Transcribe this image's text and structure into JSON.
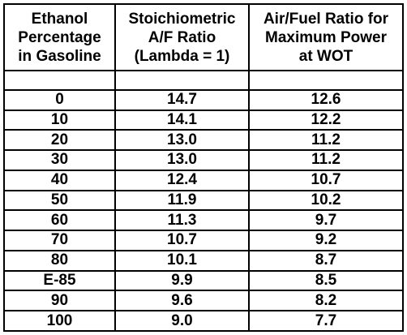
{
  "table": {
    "headers": [
      [
        "Ethanol",
        "Percentage",
        "in Gasoline"
      ],
      [
        "Stoichiometric",
        "A/F Ratio",
        "(Lambda = 1)"
      ],
      [
        "Air/Fuel Ratio for",
        "Maximum Power",
        "at WOT"
      ]
    ],
    "rows": [
      [
        "0",
        "14.7",
        "12.6"
      ],
      [
        "10",
        "14.1",
        "12.2"
      ],
      [
        "20",
        "13.0",
        "11.2"
      ],
      [
        "30",
        "13.0",
        "11.2"
      ],
      [
        "40",
        "12.4",
        "10.7"
      ],
      [
        "50",
        "11.9",
        "10.2"
      ],
      [
        "60",
        "11.3",
        "9.7"
      ],
      [
        "70",
        "10.7",
        "9.2"
      ],
      [
        "80",
        "10.1",
        "8.7"
      ],
      [
        "E-85",
        "9.9",
        "8.5"
      ],
      [
        "90",
        "9.6",
        "8.2"
      ],
      [
        "100",
        "9.0",
        "7.7"
      ]
    ]
  },
  "colors": {
    "border": "#000000",
    "text": "#000000",
    "background": "#ffffff"
  }
}
